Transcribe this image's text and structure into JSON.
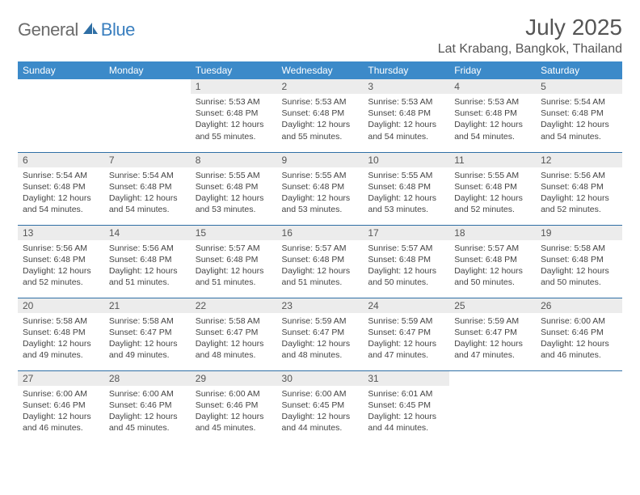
{
  "brand": {
    "part1": "General",
    "part2": "Blue"
  },
  "title": "July 2025",
  "location": "Lat Krabang, Bangkok, Thailand",
  "colors": {
    "header_bg": "#3c8ac9",
    "header_text": "#ffffff",
    "daynum_bg": "#ececec",
    "rule": "#2f6fa5",
    "logo_gray": "#6b6b6b",
    "logo_blue": "#3a7fbf"
  },
  "weekdays": [
    "Sunday",
    "Monday",
    "Tuesday",
    "Wednesday",
    "Thursday",
    "Friday",
    "Saturday"
  ],
  "weeks": [
    [
      null,
      null,
      {
        "n": "1",
        "sr": "Sunrise: 5:53 AM",
        "ss": "Sunset: 6:48 PM",
        "d1": "Daylight: 12 hours",
        "d2": "and 55 minutes."
      },
      {
        "n": "2",
        "sr": "Sunrise: 5:53 AM",
        "ss": "Sunset: 6:48 PM",
        "d1": "Daylight: 12 hours",
        "d2": "and 55 minutes."
      },
      {
        "n": "3",
        "sr": "Sunrise: 5:53 AM",
        "ss": "Sunset: 6:48 PM",
        "d1": "Daylight: 12 hours",
        "d2": "and 54 minutes."
      },
      {
        "n": "4",
        "sr": "Sunrise: 5:53 AM",
        "ss": "Sunset: 6:48 PM",
        "d1": "Daylight: 12 hours",
        "d2": "and 54 minutes."
      },
      {
        "n": "5",
        "sr": "Sunrise: 5:54 AM",
        "ss": "Sunset: 6:48 PM",
        "d1": "Daylight: 12 hours",
        "d2": "and 54 minutes."
      }
    ],
    [
      {
        "n": "6",
        "sr": "Sunrise: 5:54 AM",
        "ss": "Sunset: 6:48 PM",
        "d1": "Daylight: 12 hours",
        "d2": "and 54 minutes."
      },
      {
        "n": "7",
        "sr": "Sunrise: 5:54 AM",
        "ss": "Sunset: 6:48 PM",
        "d1": "Daylight: 12 hours",
        "d2": "and 54 minutes."
      },
      {
        "n": "8",
        "sr": "Sunrise: 5:55 AM",
        "ss": "Sunset: 6:48 PM",
        "d1": "Daylight: 12 hours",
        "d2": "and 53 minutes."
      },
      {
        "n": "9",
        "sr": "Sunrise: 5:55 AM",
        "ss": "Sunset: 6:48 PM",
        "d1": "Daylight: 12 hours",
        "d2": "and 53 minutes."
      },
      {
        "n": "10",
        "sr": "Sunrise: 5:55 AM",
        "ss": "Sunset: 6:48 PM",
        "d1": "Daylight: 12 hours",
        "d2": "and 53 minutes."
      },
      {
        "n": "11",
        "sr": "Sunrise: 5:55 AM",
        "ss": "Sunset: 6:48 PM",
        "d1": "Daylight: 12 hours",
        "d2": "and 52 minutes."
      },
      {
        "n": "12",
        "sr": "Sunrise: 5:56 AM",
        "ss": "Sunset: 6:48 PM",
        "d1": "Daylight: 12 hours",
        "d2": "and 52 minutes."
      }
    ],
    [
      {
        "n": "13",
        "sr": "Sunrise: 5:56 AM",
        "ss": "Sunset: 6:48 PM",
        "d1": "Daylight: 12 hours",
        "d2": "and 52 minutes."
      },
      {
        "n": "14",
        "sr": "Sunrise: 5:56 AM",
        "ss": "Sunset: 6:48 PM",
        "d1": "Daylight: 12 hours",
        "d2": "and 51 minutes."
      },
      {
        "n": "15",
        "sr": "Sunrise: 5:57 AM",
        "ss": "Sunset: 6:48 PM",
        "d1": "Daylight: 12 hours",
        "d2": "and 51 minutes."
      },
      {
        "n": "16",
        "sr": "Sunrise: 5:57 AM",
        "ss": "Sunset: 6:48 PM",
        "d1": "Daylight: 12 hours",
        "d2": "and 51 minutes."
      },
      {
        "n": "17",
        "sr": "Sunrise: 5:57 AM",
        "ss": "Sunset: 6:48 PM",
        "d1": "Daylight: 12 hours",
        "d2": "and 50 minutes."
      },
      {
        "n": "18",
        "sr": "Sunrise: 5:57 AM",
        "ss": "Sunset: 6:48 PM",
        "d1": "Daylight: 12 hours",
        "d2": "and 50 minutes."
      },
      {
        "n": "19",
        "sr": "Sunrise: 5:58 AM",
        "ss": "Sunset: 6:48 PM",
        "d1": "Daylight: 12 hours",
        "d2": "and 50 minutes."
      }
    ],
    [
      {
        "n": "20",
        "sr": "Sunrise: 5:58 AM",
        "ss": "Sunset: 6:48 PM",
        "d1": "Daylight: 12 hours",
        "d2": "and 49 minutes."
      },
      {
        "n": "21",
        "sr": "Sunrise: 5:58 AM",
        "ss": "Sunset: 6:47 PM",
        "d1": "Daylight: 12 hours",
        "d2": "and 49 minutes."
      },
      {
        "n": "22",
        "sr": "Sunrise: 5:58 AM",
        "ss": "Sunset: 6:47 PM",
        "d1": "Daylight: 12 hours",
        "d2": "and 48 minutes."
      },
      {
        "n": "23",
        "sr": "Sunrise: 5:59 AM",
        "ss": "Sunset: 6:47 PM",
        "d1": "Daylight: 12 hours",
        "d2": "and 48 minutes."
      },
      {
        "n": "24",
        "sr": "Sunrise: 5:59 AM",
        "ss": "Sunset: 6:47 PM",
        "d1": "Daylight: 12 hours",
        "d2": "and 47 minutes."
      },
      {
        "n": "25",
        "sr": "Sunrise: 5:59 AM",
        "ss": "Sunset: 6:47 PM",
        "d1": "Daylight: 12 hours",
        "d2": "and 47 minutes."
      },
      {
        "n": "26",
        "sr": "Sunrise: 6:00 AM",
        "ss": "Sunset: 6:46 PM",
        "d1": "Daylight: 12 hours",
        "d2": "and 46 minutes."
      }
    ],
    [
      {
        "n": "27",
        "sr": "Sunrise: 6:00 AM",
        "ss": "Sunset: 6:46 PM",
        "d1": "Daylight: 12 hours",
        "d2": "and 46 minutes."
      },
      {
        "n": "28",
        "sr": "Sunrise: 6:00 AM",
        "ss": "Sunset: 6:46 PM",
        "d1": "Daylight: 12 hours",
        "d2": "and 45 minutes."
      },
      {
        "n": "29",
        "sr": "Sunrise: 6:00 AM",
        "ss": "Sunset: 6:46 PM",
        "d1": "Daylight: 12 hours",
        "d2": "and 45 minutes."
      },
      {
        "n": "30",
        "sr": "Sunrise: 6:00 AM",
        "ss": "Sunset: 6:45 PM",
        "d1": "Daylight: 12 hours",
        "d2": "and 44 minutes."
      },
      {
        "n": "31",
        "sr": "Sunrise: 6:01 AM",
        "ss": "Sunset: 6:45 PM",
        "d1": "Daylight: 12 hours",
        "d2": "and 44 minutes."
      },
      null,
      null
    ]
  ]
}
